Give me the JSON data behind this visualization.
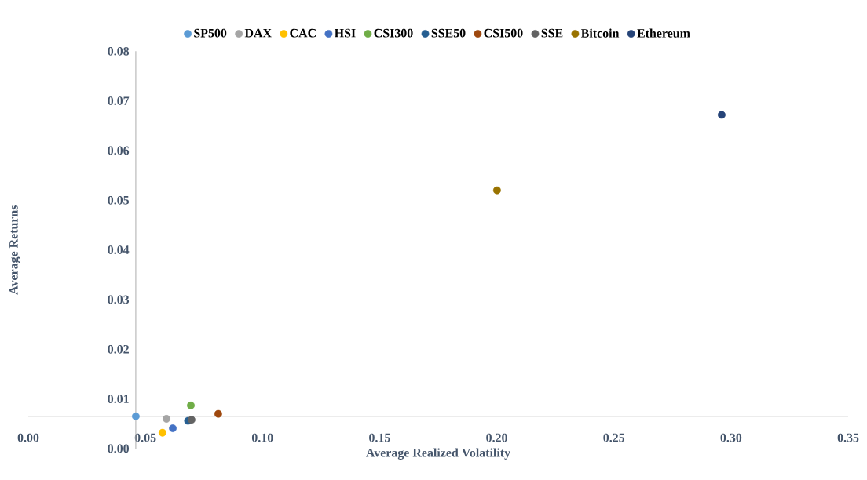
{
  "chart_data": {
    "type": "scatter",
    "xlabel": "Average Realized Volatility",
    "ylabel": "Average Returns",
    "series": [
      {
        "name": "SP500",
        "color": "#5b9bd5",
        "x": [
          0.0459
        ],
        "values": [
          0.0065
        ]
      },
      {
        "name": "DAX",
        "color": "#a5a5a5",
        "x": [
          0.059
        ],
        "values": [
          0.006
        ]
      },
      {
        "name": "CAC",
        "color": "#ffc000",
        "x": [
          0.0573
        ],
        "values": [
          0.0032
        ]
      },
      {
        "name": "HSI",
        "color": "#4472c4",
        "x": [
          0.0617
        ],
        "values": [
          0.0041
        ]
      },
      {
        "name": "CSI300",
        "color": "#70ad47",
        "x": [
          0.0694
        ],
        "values": [
          0.0087
        ]
      },
      {
        "name": "SSE50",
        "color": "#255e91",
        "x": [
          0.0682
        ],
        "values": [
          0.0056
        ]
      },
      {
        "name": "CSI500",
        "color": "#9e480e",
        "x": [
          0.0811
        ],
        "values": [
          0.007
        ]
      },
      {
        "name": "SSE",
        "color": "#636363",
        "x": [
          0.0697
        ],
        "values": [
          0.0058
        ]
      },
      {
        "name": "Bitcoin",
        "color": "#997300",
        "x": [
          0.2001
        ],
        "values": [
          0.052
        ]
      },
      {
        "name": "Ethereum",
        "color": "#264478",
        "x": [
          0.296
        ],
        "values": [
          0.0672
        ]
      }
    ],
    "xlim": [
      0,
      0.35
    ],
    "ylim": [
      0,
      0.08
    ],
    "xticks": [
      {
        "value": 0,
        "label": "0.00"
      },
      {
        "value": 0.05,
        "label": "0.05"
      },
      {
        "value": 0.1,
        "label": "0.10"
      },
      {
        "value": 0.15,
        "label": "0.15"
      },
      {
        "value": 0.2,
        "label": "0.20"
      },
      {
        "value": 0.25,
        "label": "0.25"
      },
      {
        "value": 0.3,
        "label": "0.30"
      },
      {
        "value": 0.35,
        "label": "0.35"
      }
    ],
    "yticks": [
      {
        "value": 0,
        "label": "0.00"
      },
      0.01,
      0.02,
      0.03,
      0.04,
      0.05,
      0.06,
      0.07,
      0.08
    ],
    "legend": "top",
    "marker": "circle",
    "grid": false
  }
}
